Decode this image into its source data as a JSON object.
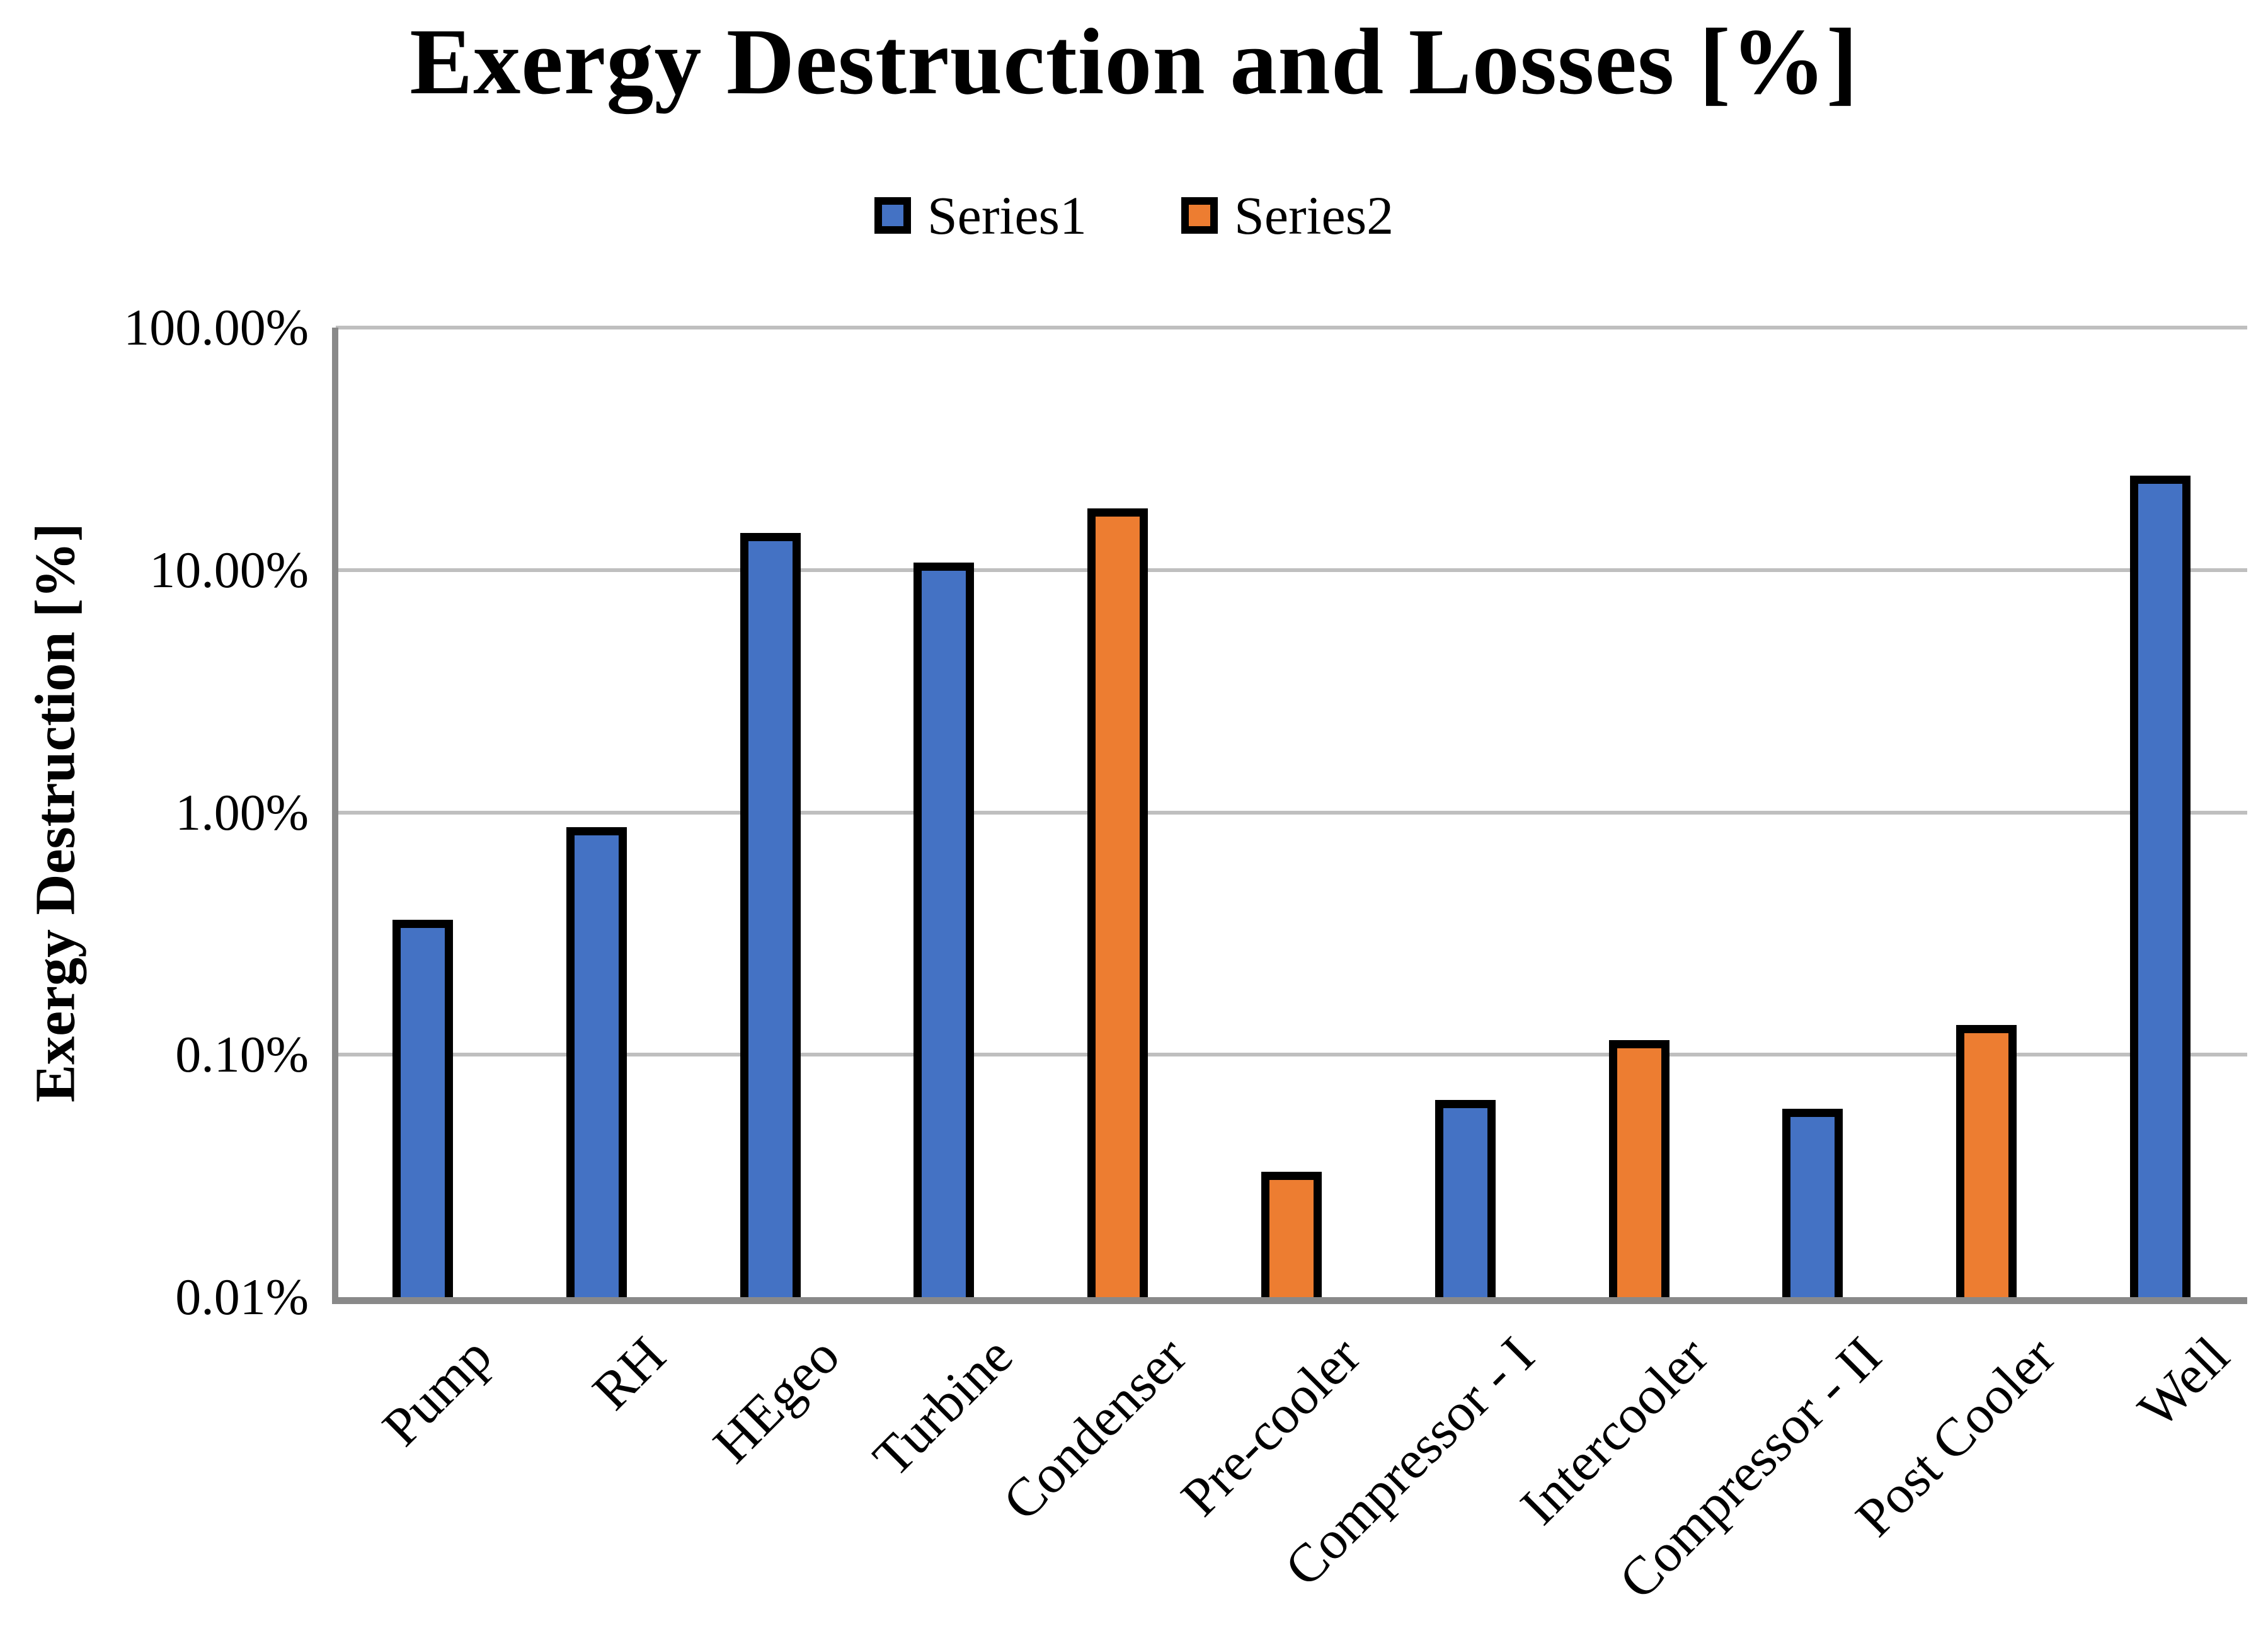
{
  "title": "Exergy Destruction and Losses [%]",
  "colors": {
    "series1": "#4472C4",
    "series2": "#ED7D31",
    "bar_border": "#000000",
    "gridline": "#BFBFBF",
    "axis_line": "#898989"
  },
  "chart_data": {
    "type": "bar",
    "title": "Exergy Destruction and Losses [%]",
    "xlabel": "",
    "ylabel": "Exergy Destruction [%]",
    "y_scale": "log",
    "ylim": [
      0.01,
      100
    ],
    "y_tick_labels": [
      "100.00%",
      "10.00%",
      "1.00%",
      "0.10%",
      "0.01%"
    ],
    "grid": true,
    "legend_position": "top-center",
    "values_unit": "percent",
    "categories": [
      "Pump",
      "RH",
      "HEgeo",
      "Turbine",
      "Condenser",
      "Pre-cooler",
      "Compressor - I",
      "Intercooler",
      "Compressor - II",
      "Post Cooler",
      "Well"
    ],
    "series": [
      {
        "name": "Series1",
        "color": "#4472C4",
        "values": [
          0.36,
          0.87,
          14.2,
          10.7,
          null,
          null,
          0.065,
          null,
          0.06,
          null,
          24.5
        ]
      },
      {
        "name": "Series2",
        "color": "#ED7D31",
        "values": [
          null,
          null,
          null,
          null,
          17.9,
          0.033,
          null,
          0.115,
          null,
          0.133,
          null
        ]
      }
    ]
  }
}
